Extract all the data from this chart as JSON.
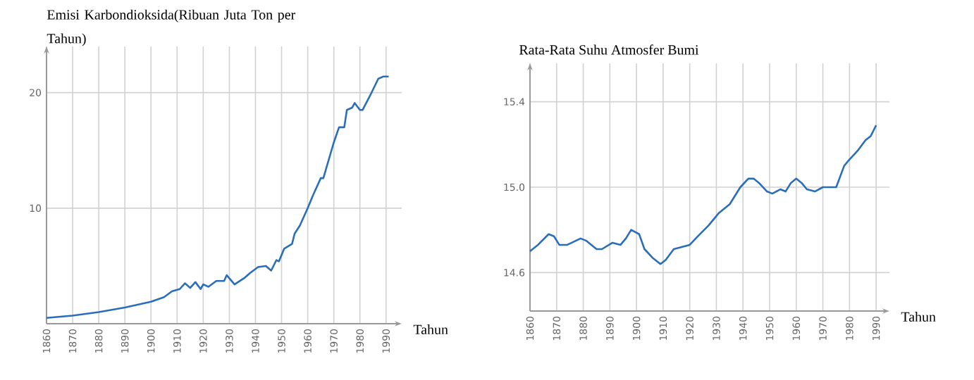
{
  "chart_data": [
    {
      "type": "line",
      "ylabel": "Emisi Karbondioksida(Ribuan Juta Ton per Tahun)",
      "xlabel": "Tahun",
      "grid": true,
      "x": [
        1860,
        1870,
        1880,
        1890,
        1900,
        1905,
        1908,
        1911,
        1913,
        1915,
        1917,
        1919,
        1920,
        1922,
        1925,
        1928,
        1929,
        1932,
        1936,
        1938,
        1941,
        1944,
        1946,
        1948,
        1949,
        1951,
        1954,
        1955,
        1957,
        1960,
        1962,
        1965,
        1966,
        1970,
        1972,
        1974,
        1975,
        1977,
        1978,
        1980,
        1981,
        1984,
        1987,
        1989,
        1991
      ],
      "series": [
        {
          "color": "#2a6ebb",
          "values": [
            0.5,
            0.7,
            1.0,
            1.4,
            1.9,
            2.3,
            2.8,
            3.0,
            3.5,
            3.1,
            3.6,
            3.0,
            3.4,
            3.2,
            3.7,
            3.7,
            4.2,
            3.4,
            4.0,
            4.4,
            4.9,
            5.0,
            4.6,
            5.5,
            5.4,
            6.5,
            6.9,
            7.8,
            8.5,
            10.0,
            11.1,
            12.6,
            12.6,
            15.7,
            17.0,
            17.0,
            18.5,
            18.7,
            19.1,
            18.5,
            18.5,
            19.8,
            21.2,
            21.4,
            21.4
          ]
        }
      ],
      "xlim": [
        1860,
        1996
      ],
      "ylim": [
        0,
        24
      ],
      "xticks": [
        1860,
        1870,
        1880,
        1890,
        1900,
        1910,
        1920,
        1930,
        1940,
        1950,
        1960,
        1970,
        1980,
        1990
      ],
      "yticks": [
        10,
        20
      ]
    },
    {
      "type": "line",
      "ylabel": "Rata-Rata Suhu Atmosfer Bumi",
      "xlabel": "Tahun",
      "grid": true,
      "x": [
        1860,
        1863,
        1867,
        1869,
        1871,
        1874,
        1879,
        1881,
        1885,
        1887,
        1891,
        1894,
        1896,
        1898,
        1901,
        1903,
        1906,
        1909,
        1911,
        1914,
        1917,
        1920,
        1923,
        1927,
        1931,
        1935,
        1939,
        1942,
        1944,
        1946,
        1949,
        1951,
        1954,
        1956,
        1958,
        1960,
        1962,
        1964,
        1967,
        1970,
        1973,
        1975,
        1978,
        1980,
        1983,
        1986,
        1988,
        1990
      ],
      "series": [
        {
          "color": "#2a6ebb",
          "values": [
            14.7,
            14.73,
            14.78,
            14.77,
            14.73,
            14.73,
            14.76,
            14.75,
            14.71,
            14.71,
            14.74,
            14.73,
            14.76,
            14.8,
            14.78,
            14.71,
            14.67,
            14.64,
            14.66,
            14.71,
            14.72,
            14.73,
            14.77,
            14.82,
            14.88,
            14.92,
            15.0,
            15.04,
            15.04,
            15.02,
            14.98,
            14.97,
            14.99,
            14.98,
            15.02,
            15.04,
            15.02,
            14.99,
            14.98,
            15.0,
            15.0,
            15.0,
            15.1,
            15.13,
            15.17,
            15.22,
            15.24,
            15.29
          ]
        }
      ],
      "xlim": [
        1860,
        1995
      ],
      "ylim": [
        14.42,
        15.58
      ],
      "xticks": [
        1860,
        1870,
        1880,
        1890,
        1900,
        1910,
        1920,
        1930,
        1940,
        1950,
        1960,
        1970,
        1980,
        1990
      ],
      "yticks": [
        14.6,
        {
          "value": 15.0,
          "label": "15.0"
        },
        15.4
      ]
    }
  ]
}
